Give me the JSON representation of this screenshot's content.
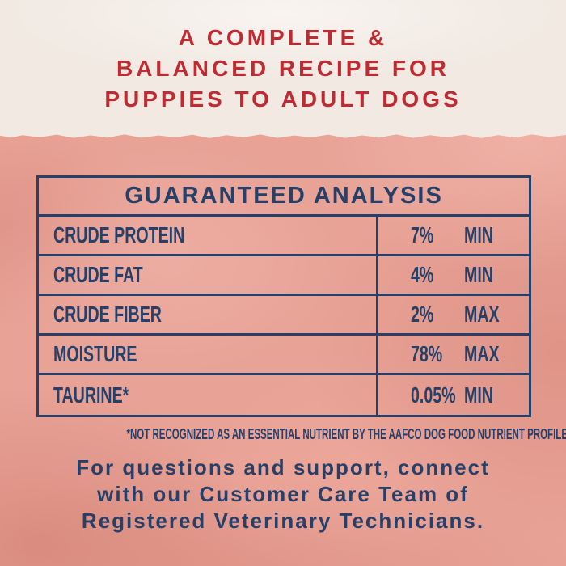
{
  "claim_banner": {
    "lines": [
      "A COMPLETE &",
      "BALANCED RECIPE FOR",
      "PUPPIES TO ADULT DOGS"
    ]
  },
  "guaranteed_analysis": {
    "title": "GUARANTEED ANALYSIS",
    "rows": [
      {
        "nutrient": "CRUDE PROTEIN",
        "value": "7%",
        "qualifier": "MIN"
      },
      {
        "nutrient": "CRUDE FAT",
        "value": "4%",
        "qualifier": "MIN"
      },
      {
        "nutrient": "CRUDE FIBER",
        "value": "2%",
        "qualifier": "MAX"
      },
      {
        "nutrient": "MOISTURE",
        "value": "78%",
        "qualifier": "MAX"
      },
      {
        "nutrient": "TAURINE*",
        "value": "0.05%",
        "qualifier": "MIN"
      }
    ],
    "footnote": "*NOT RECOGNIZED AS AN ESSENTIAL NUTRIENT BY THE AAFCO DOG FOOD NUTRIENT PROFILES."
  },
  "support_message": {
    "lines": [
      "For questions and support, connect",
      "with our Customer Care Team of",
      "Registered Veterinary Technicians."
    ]
  },
  "colors": {
    "background_cream": "#F1E9E2",
    "background_pink": "#E8A296",
    "text_navy": "#264069",
    "text_red": "#BE2B32"
  }
}
